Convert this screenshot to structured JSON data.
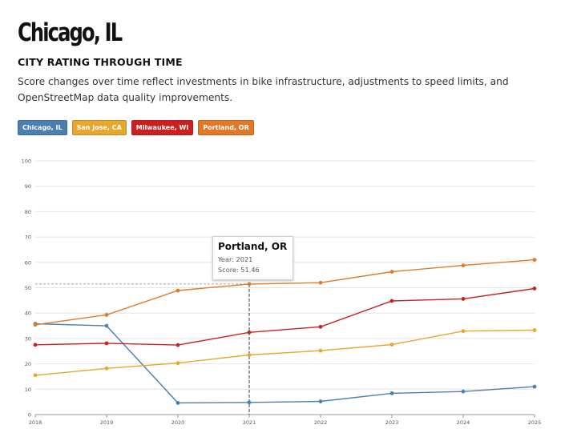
{
  "header": {
    "title": "Chicago, IL",
    "subtitle": "CITY RATING THROUGH TIME",
    "description": "Score changes over time reflect investments in bike infrastructure, adjustments to speed limits, and OpenStreetMap data quality improvements."
  },
  "legend": [
    {
      "label": "Chicago, IL",
      "color": "#4a7fb0"
    },
    {
      "label": "San Jose, CA",
      "color": "#e5a72e"
    },
    {
      "label": "Milwaukee, WI",
      "color": "#c92121"
    },
    {
      "label": "Portland, OR",
      "color": "#e07a2a"
    }
  ],
  "tooltip": {
    "city": "Portland, OR",
    "year_label": "Year: 2021",
    "score_label": "Score: 51.46"
  },
  "chart_data": {
    "type": "line",
    "x": [
      2018,
      2019,
      2020,
      2021,
      2022,
      2023,
      2024,
      2025
    ],
    "ylim": [
      0,
      100
    ],
    "yticks": [
      0,
      10,
      20,
      30,
      40,
      50,
      60,
      70,
      80,
      90,
      100
    ],
    "grid": true,
    "series": [
      {
        "name": "Chicago, IL",
        "color": "#4a7fb0",
        "values": [
          35.8,
          35.0,
          4.6,
          4.8,
          5.2,
          8.4,
          9.1,
          11.0
        ]
      },
      {
        "name": "San Jose, CA",
        "color": "#e5a72e",
        "values": [
          15.5,
          18.2,
          20.3,
          23.5,
          25.2,
          27.6,
          32.9,
          33.3
        ]
      },
      {
        "name": "Milwaukee, WI",
        "color": "#c92121",
        "values": [
          27.5,
          28.1,
          27.4,
          32.4,
          34.6,
          44.8,
          45.6,
          49.7
        ]
      },
      {
        "name": "Portland, OR",
        "color": "#e07a2a",
        "values": [
          35.4,
          39.3,
          48.9,
          51.46,
          52.0,
          56.3,
          58.8,
          61.0
        ]
      }
    ],
    "highlight": {
      "series": "Portland, OR",
      "x": 2021,
      "y": 51.46
    }
  }
}
